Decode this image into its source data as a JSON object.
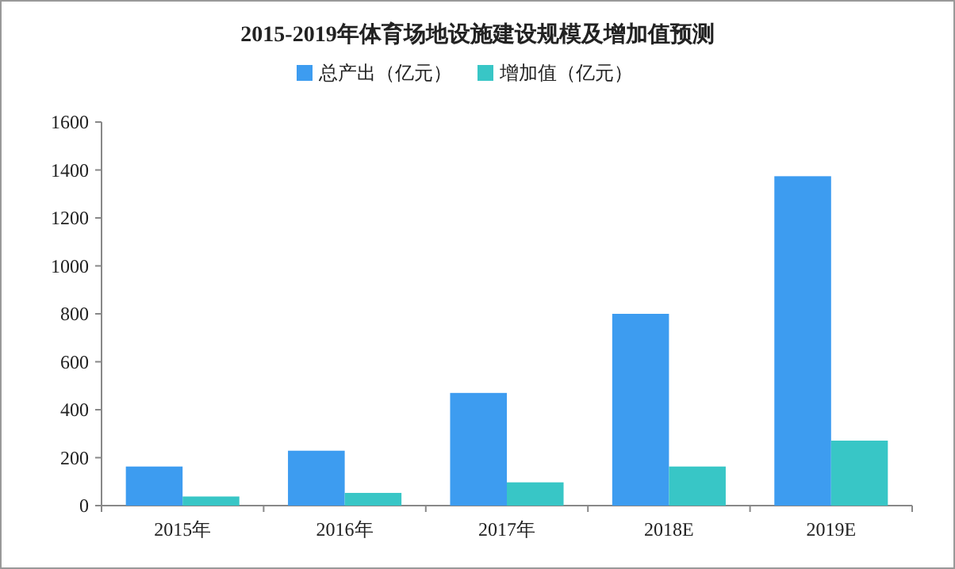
{
  "chart_data": {
    "type": "bar",
    "title": "2015-2019年体育场地设施建设规模及增加值预测",
    "categories": [
      "2015年",
      "2016年",
      "2017年",
      "2018E",
      "2019E"
    ],
    "series": [
      {
        "name": "总产出（亿元）",
        "color": "#3d9cf0",
        "values": [
          163,
          229,
          470,
          800,
          1374
        ]
      },
      {
        "name": "增加值（亿元）",
        "color": "#38c6c6",
        "values": [
          38,
          53,
          97,
          163,
          271
        ]
      }
    ],
    "ylim": [
      0,
      1600
    ],
    "yticks": [
      0,
      200,
      400,
      600,
      800,
      1000,
      1200,
      1400,
      1600
    ],
    "legend": "top",
    "grid": false
  }
}
